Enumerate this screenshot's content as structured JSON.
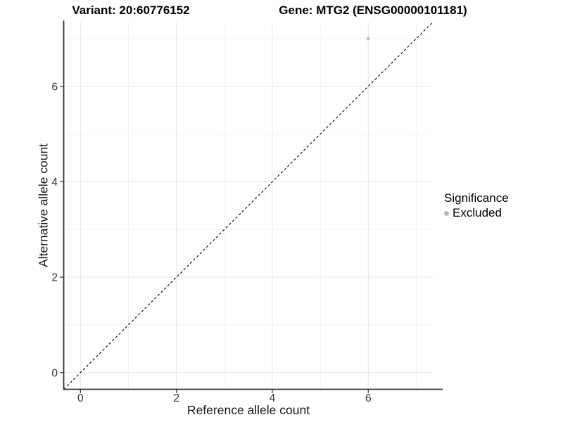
{
  "chart_data": {
    "type": "scatter",
    "title_left": "Variant: 20:60776152",
    "title_right": "Gene: MTG2 (ENSG00000101181)",
    "xlabel": "Reference allele count",
    "ylabel": "Alternative allele count",
    "xlim": [
      -0.35,
      7.35
    ],
    "ylim": [
      -0.35,
      7.35
    ],
    "x_major_ticks": [
      0,
      2,
      4,
      6
    ],
    "y_major_ticks": [
      0,
      2,
      4,
      6
    ],
    "x_minor_gridlines": [
      1,
      3,
      5,
      7
    ],
    "y_minor_gridlines": [
      1,
      3,
      5,
      7
    ],
    "grid": "on",
    "points": [
      {
        "x": 6,
        "y": 7,
        "series": "Excluded"
      }
    ],
    "reference_line": {
      "type": "identity",
      "slope": 1,
      "intercept": 0,
      "style": "dashed",
      "color": "#000000"
    },
    "legend": {
      "title": "Significance",
      "position": "right",
      "items": [
        {
          "label": "Excluded",
          "color": "#bdbdbd"
        }
      ]
    },
    "colors": {
      "background": "#ffffff",
      "grid_major": "#e7e7e7",
      "grid_minor": "#f1f1f1",
      "axis": "#333333",
      "tick_text": "#333333",
      "point": "#bdbdbd"
    }
  }
}
